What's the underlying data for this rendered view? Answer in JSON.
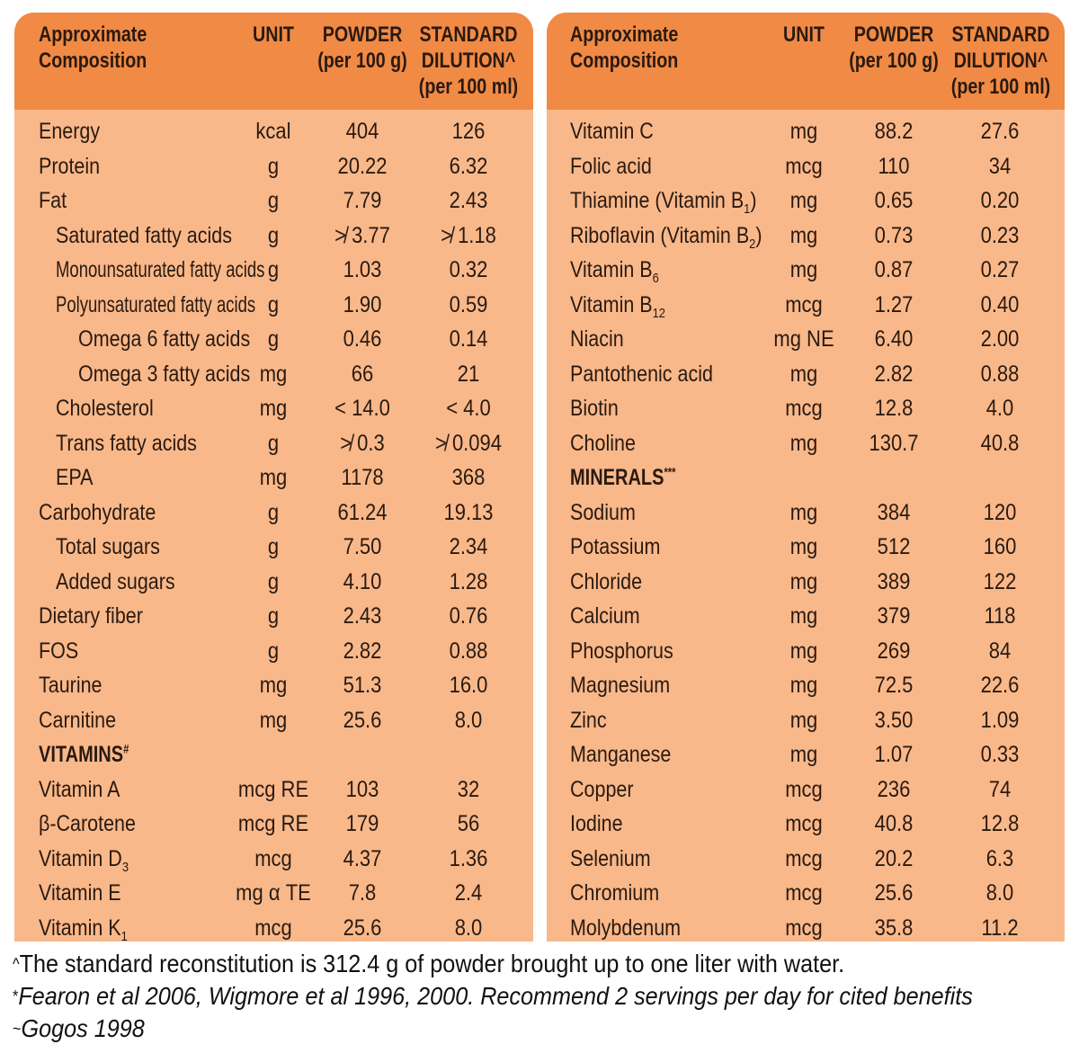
{
  "headers": {
    "composition": [
      "Approximate",
      "Composition"
    ],
    "unit": "UNIT",
    "powder": [
      "POWDER",
      "(per 100 g)"
    ],
    "dilution": [
      "STANDARD",
      "DILUTION^",
      "(per 100 ml)"
    ]
  },
  "left_rows": [
    {
      "name": "Energy",
      "unit": "kcal",
      "powder": "404",
      "dilution": "126",
      "indent": 0
    },
    {
      "name": "Protein",
      "unit": "g",
      "powder": "20.22",
      "dilution": "6.32",
      "indent": 0
    },
    {
      "name": "Fat",
      "unit": "g",
      "powder": "7.79",
      "dilution": "2.43",
      "indent": 0
    },
    {
      "name": "Saturated fatty acids",
      "unit": "g",
      "powder": "≯ 3.77",
      "dilution": "≯ 1.18",
      "indent": 1
    },
    {
      "name": "Monounsaturated fatty acids",
      "unit": "g",
      "powder": "1.03",
      "dilution": "0.32",
      "indent": 1,
      "small": true
    },
    {
      "name": "Polyunsaturated fatty acids",
      "unit": "g",
      "powder": "1.90",
      "dilution": "0.59",
      "indent": 1,
      "small": true
    },
    {
      "name": "Omega 6 fatty acids",
      "unit": "g",
      "powder": "0.46",
      "dilution": "0.14",
      "indent": 2
    },
    {
      "name": "Omega 3 fatty acids",
      "unit": "mg",
      "powder": "66",
      "dilution": "21",
      "indent": 2
    },
    {
      "name": "Cholesterol",
      "unit": "mg",
      "powder": "< 14.0",
      "dilution": "< 4.0",
      "indent": 1
    },
    {
      "name": "Trans fatty acids",
      "unit": "g",
      "powder": "≯ 0.3",
      "dilution": "≯ 0.094",
      "indent": 1
    },
    {
      "name": "EPA",
      "unit": "mg",
      "powder": "1178",
      "dilution": "368",
      "indent": 1
    },
    {
      "name": "Carbohydrate",
      "unit": "g",
      "powder": "61.24",
      "dilution": "19.13",
      "indent": 0
    },
    {
      "name": "Total sugars",
      "unit": "g",
      "powder": "7.50",
      "dilution": "2.34",
      "indent": 1
    },
    {
      "name": "Added sugars",
      "unit": "g",
      "powder": "4.10",
      "dilution": "1.28",
      "indent": 1
    },
    {
      "name": "Dietary fiber",
      "unit": "g",
      "powder": "2.43",
      "dilution": "0.76",
      "indent": 0
    },
    {
      "name": "FOS",
      "unit": "g",
      "powder": "2.82",
      "dilution": "0.88",
      "indent": 0
    },
    {
      "name": "Taurine",
      "unit": "mg",
      "powder": "51.3",
      "dilution": "16.0",
      "indent": 0
    },
    {
      "name": "Carnitine",
      "unit": "mg",
      "powder": "25.6",
      "dilution": "8.0",
      "indent": 0
    },
    {
      "name": "VITAMINS",
      "sup": "#",
      "section": true,
      "unit": "",
      "powder": "",
      "dilution": "",
      "indent": 0
    },
    {
      "name": "Vitamin A",
      "unit": "mcg RE",
      "powder": "103",
      "dilution": "32",
      "indent": 0
    },
    {
      "name": "β-Carotene",
      "unit": "mcg RE",
      "powder": "179",
      "dilution": "56",
      "indent": 0
    },
    {
      "name": "Vitamin D",
      "sub": "3",
      "unit": "mcg",
      "powder": "4.37",
      "dilution": "1.36",
      "indent": 0
    },
    {
      "name": "Vitamin E",
      "unit": "mg α TE",
      "powder": "7.8",
      "dilution": "2.4",
      "indent": 0
    },
    {
      "name": "Vitamin K",
      "sub": "1",
      "unit": "mcg",
      "powder": "25.6",
      "dilution": "8.0",
      "indent": 0
    }
  ],
  "right_rows": [
    {
      "name": "Vitamin C",
      "unit": "mg",
      "powder": "88.2",
      "dilution": "27.6",
      "indent": 0
    },
    {
      "name": "Folic acid",
      "unit": "mcg",
      "powder": "110",
      "dilution": "34",
      "indent": 0
    },
    {
      "name": "Thiamine (Vitamin B",
      "sub": "1",
      "tail": ")",
      "unit": "mg",
      "powder": "0.65",
      "dilution": "0.20",
      "indent": 0
    },
    {
      "name": "Riboflavin (Vitamin B",
      "sub": "2",
      "tail": ")",
      "unit": "mg",
      "powder": "0.73",
      "dilution": "0.23",
      "indent": 0
    },
    {
      "name": "Vitamin B",
      "sub": "6",
      "unit": "mg",
      "powder": "0.87",
      "dilution": "0.27",
      "indent": 0
    },
    {
      "name": "Vitamin B",
      "sub": "12",
      "unit": "mcg",
      "powder": "1.27",
      "dilution": "0.40",
      "indent": 0
    },
    {
      "name": "Niacin",
      "unit": "mg NE",
      "powder": "6.40",
      "dilution": "2.00",
      "indent": 0
    },
    {
      "name": "Pantothenic acid",
      "unit": "mg",
      "powder": "2.82",
      "dilution": "0.88",
      "indent": 0
    },
    {
      "name": "Biotin",
      "unit": "mcg",
      "powder": "12.8",
      "dilution": "4.0",
      "indent": 0
    },
    {
      "name": "Choline",
      "unit": "mg",
      "powder": "130.7",
      "dilution": "40.8",
      "indent": 0
    },
    {
      "name": "MINERALS",
      "sup": "***",
      "section": true,
      "unit": "",
      "powder": "",
      "dilution": "",
      "indent": 0
    },
    {
      "name": "Sodium",
      "unit": "mg",
      "powder": "384",
      "dilution": "120",
      "indent": 0
    },
    {
      "name": "Potassium",
      "unit": "mg",
      "powder": "512",
      "dilution": "160",
      "indent": 0
    },
    {
      "name": "Chloride",
      "unit": "mg",
      "powder": "389",
      "dilution": "122",
      "indent": 0
    },
    {
      "name": "Calcium",
      "unit": "mg",
      "powder": "379",
      "dilution": "118",
      "indent": 0
    },
    {
      "name": "Phosphorus",
      "unit": "mg",
      "powder": "269",
      "dilution": "84",
      "indent": 0
    },
    {
      "name": "Magnesium",
      "unit": "mg",
      "powder": "72.5",
      "dilution": "22.6",
      "indent": 0
    },
    {
      "name": "Zinc",
      "unit": "mg",
      "powder": "3.50",
      "dilution": "1.09",
      "indent": 0
    },
    {
      "name": "Manganese",
      "unit": "mg",
      "powder": "1.07",
      "dilution": "0.33",
      "indent": 0
    },
    {
      "name": "Copper",
      "unit": "mcg",
      "powder": "236",
      "dilution": "74",
      "indent": 0
    },
    {
      "name": "Iodine",
      "unit": "mcg",
      "powder": "40.8",
      "dilution": "12.8",
      "indent": 0
    },
    {
      "name": "Selenium",
      "unit": "mcg",
      "powder": "20.2",
      "dilution": "6.3",
      "indent": 0
    },
    {
      "name": "Chromium",
      "unit": "mcg",
      "powder": "25.6",
      "dilution": "8.0",
      "indent": 0
    },
    {
      "name": "Molybdenum",
      "unit": "mcg",
      "powder": "35.8",
      "dilution": "11.2",
      "indent": 0
    }
  ],
  "footnotes": [
    {
      "mark": "^",
      "text": "The standard reconstitution is 312.4 g of powder brought up to one liter with water.",
      "italic": false
    },
    {
      "mark": "*",
      "text": "Fearon et al 2006, Wigmore et al 1996, 2000. Recommend 2 servings per day for cited benefits",
      "italic": true
    },
    {
      "mark": "~",
      "text": "Gogos 1998",
      "italic": true
    }
  ],
  "colors": {
    "header": "#f08a45",
    "body": "#f9b88a",
    "text": "#2a1a10"
  }
}
